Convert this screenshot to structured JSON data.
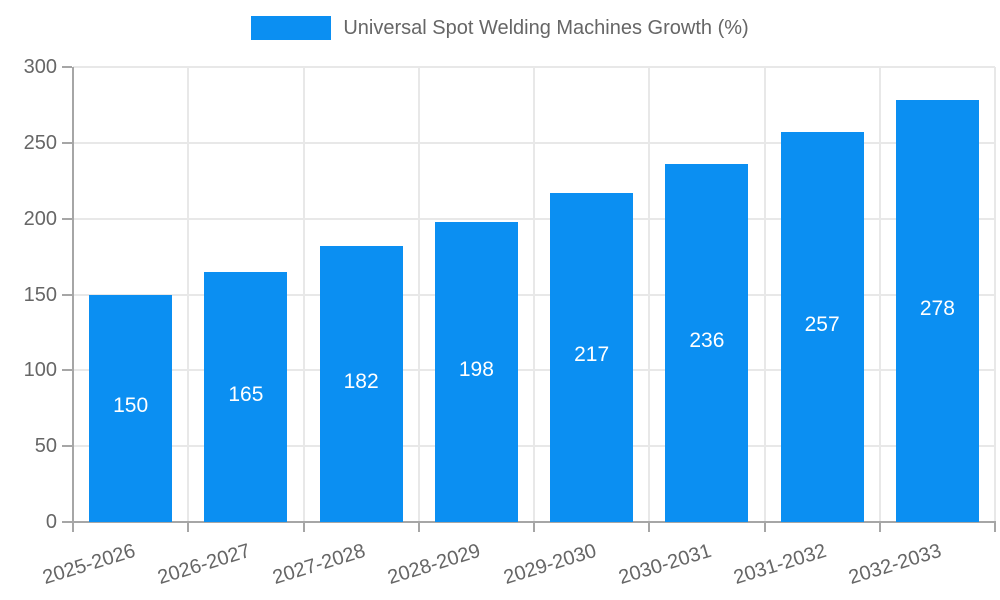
{
  "legend": {
    "label": "Universal Spot Welding Machines Growth (%)"
  },
  "chart_data": {
    "type": "bar",
    "title": "Universal Spot Welding Machines Growth (%)",
    "categories": [
      "2025-2026",
      "2026-2027",
      "2027-2028",
      "2028-2029",
      "2029-2030",
      "2030-2031",
      "2031-2032",
      "2032-2033"
    ],
    "values": [
      150,
      165,
      182,
      198,
      217,
      236,
      257,
      278
    ],
    "xlabel": "",
    "ylabel": "",
    "ylim": [
      0,
      300
    ],
    "yticks": [
      0,
      50,
      100,
      150,
      200,
      250,
      300
    ],
    "grid": true,
    "legend_position": "top-center",
    "bar_color": "#0b8ff2",
    "value_label_color": "#ffffff",
    "axis_label_color": "#666666",
    "axis_line_color": "#a6a6a6",
    "gridline_color": "#e8e8e8",
    "background_color": "#ffffff"
  }
}
